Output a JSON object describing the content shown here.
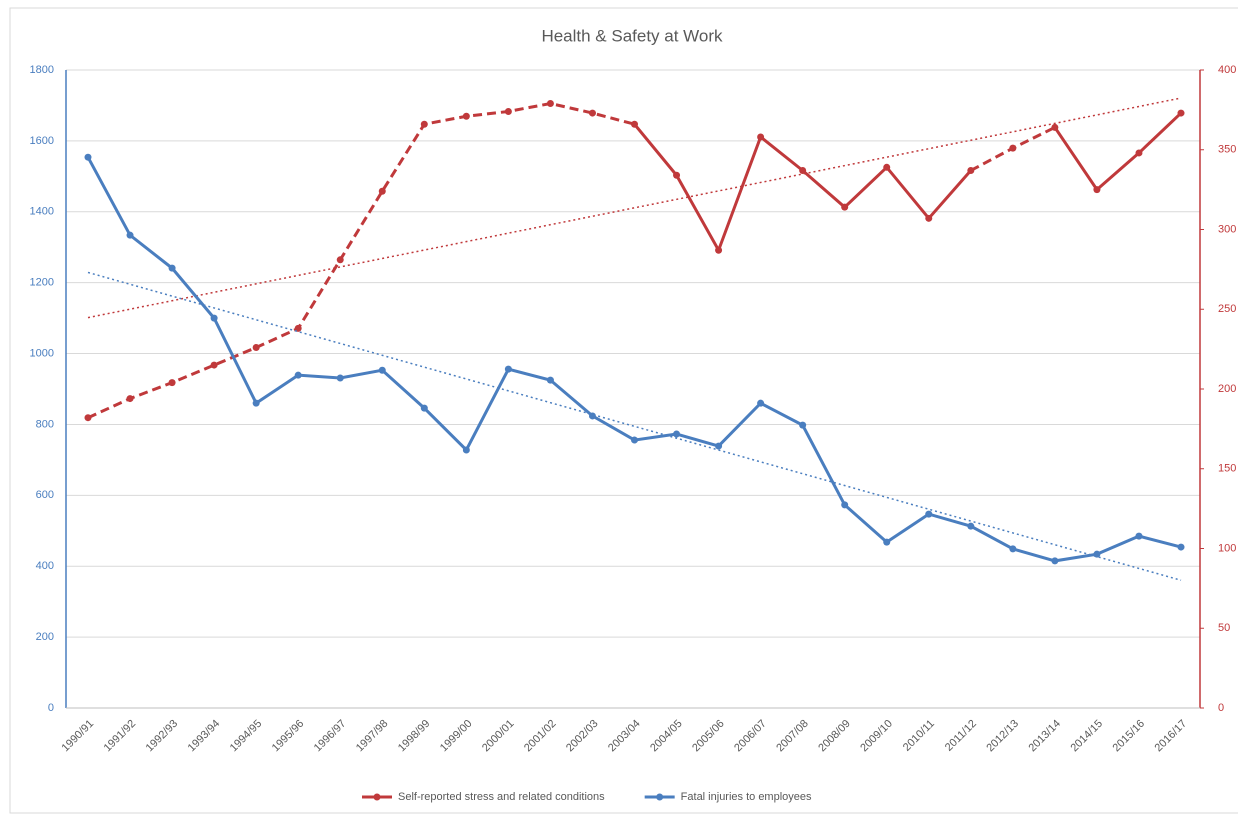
{
  "chart_data": {
    "type": "line",
    "title": "Health & Safety at Work",
    "categories": [
      "1990/91",
      "1991/92",
      "1992/93",
      "1993/94",
      "1994/95",
      "1995/96",
      "1996/97",
      "1997/98",
      "1998/99",
      "1999/00",
      "2000/01",
      "2001/02",
      "2002/03",
      "2003/04",
      "2004/05",
      "2005/06",
      "2006/07",
      "2007/08",
      "2008/09",
      "2009/10",
      "2010/11",
      "2011/12",
      "2012/13",
      "2013/14",
      "2014/15",
      "2015/16",
      "2016/17"
    ],
    "series": [
      {
        "name": "Self-reported stress and related conditions",
        "color": "#c0393b",
        "axis": "y2",
        "trendline": true,
        "dashed_segments": [
          [
            0,
            13
          ],
          [
            21,
            23
          ]
        ],
        "values": [
          182,
          194,
          204,
          215,
          226,
          238,
          281,
          324,
          366,
          371,
          374,
          379,
          373,
          366,
          334,
          287,
          358,
          337,
          314,
          339,
          307,
          337,
          351,
          364,
          325,
          348,
          373
        ]
      },
      {
        "name": "Fatal injuries to employees",
        "color": "#4a7ebf",
        "trendline": true,
        "values": [
          1554,
          1334,
          1241,
          1100,
          860,
          939,
          931,
          953,
          846,
          728,
          956,
          925,
          824,
          756,
          773,
          739,
          860,
          798,
          573,
          468,
          547,
          513,
          449,
          415,
          434,
          485,
          454
        ]
      }
    ],
    "ylim": [
      0,
      1800
    ],
    "yticks": [
      0,
      200,
      400,
      600,
      800,
      1000,
      1200,
      1400,
      1600,
      1800
    ],
    "y2lim": [
      0,
      400
    ],
    "y2ticks": [
      0,
      50,
      100,
      150,
      200,
      250,
      300,
      350,
      400
    ],
    "grid": true,
    "legend": "bottom"
  }
}
